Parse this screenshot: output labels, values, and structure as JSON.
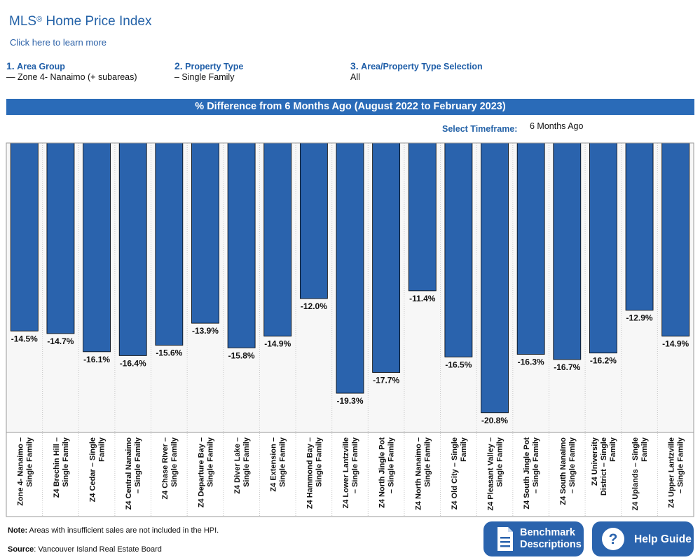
{
  "header": {
    "title": "MLS",
    "title_mark": "®",
    "title_rest": " Home Price Index",
    "learn_more": "Click here to learn more"
  },
  "selectors": [
    {
      "num": "1.",
      "label": "Area Group",
      "value": "— Zone 4- Nanaimo (+ subareas)"
    },
    {
      "num": "2.",
      "label": "Property Type",
      "value": "– Single Family"
    },
    {
      "num": "3.",
      "label": "Area/Property Type Selection",
      "value": "All"
    }
  ],
  "banner": "% Difference from 6 Months Ago (August 2022 to February 2023)",
  "timeframe": {
    "label": "Select Timeframe:",
    "value": "6 Months Ago"
  },
  "chart_data": {
    "type": "bar",
    "title": "% Difference from 6 Months Ago (August 2022 to February 2023)",
    "categories": [
      "Zone 4- Nanaimo – Single Family",
      "Z4 Brechin Hill – Single Family",
      "Z4 Cedar – Single Family",
      "Z4 Central Nanaimo – Single Family",
      "Z4 Chase River – Single Family",
      "Z4 Departure Bay – Single Family",
      "Z4 Diver Lake – Single Family",
      "Z4 Extension – Single Family",
      "Z4 Hammond Bay – Single Family",
      "Z4 Lower Lantzville – Single Family",
      "Z4 North Jingle Pot – Single Family",
      "Z4 North Nanaimo – Single Family",
      "Z4 Old City – Single Family",
      "Z4 Pleasant Valley – Single Family",
      "Z4 South Jingle Pot – Single Family",
      "Z4 South Nanaimo – Single Family",
      "Z4 University District – Single Family",
      "Z4 Uplands – Single Family",
      "Z4 Upper Lantzville – Single Family"
    ],
    "label_lines": [
      [
        "Zone 4- Nanaimo –",
        "Single Family"
      ],
      [
        "Z4 Brechin Hill –",
        "Single Family"
      ],
      [
        "Z4 Cedar – Single",
        "Family"
      ],
      [
        "Z4 Central Nanaimo",
        "– Single Family"
      ],
      [
        "Z4 Chase River –",
        "Single Family"
      ],
      [
        "Z4 Departure Bay –",
        "Single Family"
      ],
      [
        "Z4 Diver Lake –",
        "Single Family"
      ],
      [
        "Z4 Extension –",
        "Single Family"
      ],
      [
        "Z4 Hammond Bay –",
        "Single Family"
      ],
      [
        "Z4 Lower Lantzville",
        "– Single Family"
      ],
      [
        "Z4 North Jingle Pot",
        "– Single Family"
      ],
      [
        "Z4 North Nanaimo –",
        "Single Family"
      ],
      [
        "Z4 Old City – Single",
        "Family"
      ],
      [
        "Z4 Pleasant Valley –",
        "Single Family"
      ],
      [
        "Z4 South Jingle Pot",
        "– Single Family"
      ],
      [
        "Z4 South Nanaimo",
        "– Single Family"
      ],
      [
        "Z4 University",
        "District – Single",
        "Family"
      ],
      [
        "Z4 Uplands – Single",
        "Family"
      ],
      [
        "Z4 Upper Lantzville",
        "– Single Family"
      ]
    ],
    "values": [
      -14.5,
      -14.7,
      -16.1,
      -16.4,
      -15.6,
      -13.9,
      -15.8,
      -14.9,
      -12.0,
      -19.3,
      -17.7,
      -11.4,
      -16.5,
      -20.8,
      -16.3,
      -16.7,
      -16.2,
      -12.9,
      -14.9
    ],
    "value_labels": [
      "-14.5%",
      "-14.7%",
      "-16.1%",
      "-16.4%",
      "-15.6%",
      "-13.9%",
      "-15.8%",
      "-14.9%",
      "-12.0%",
      "-19.3%",
      "-17.7%",
      "-11.4%",
      "-16.5%",
      "-20.8%",
      "-16.3%",
      "-16.7%",
      "-16.2%",
      "-12.9%",
      "-14.9%"
    ],
    "ylim": [
      -25,
      0
    ],
    "bar_color": "#2a63ad",
    "grid": "vertical-dotted",
    "xlabel": "",
    "ylabel": ""
  },
  "footer": {
    "note_label": "Note:",
    "note_text": " Areas with insufficient sales are not included in the HPI.",
    "source_label": "Source",
    "source_text": ": Vancouver Island Real Estate Board"
  },
  "buttons": {
    "benchmark_line1": "Benchmark",
    "benchmark_line2": "Descriptions",
    "help": "Help Guide",
    "color": "#2a63ad"
  }
}
